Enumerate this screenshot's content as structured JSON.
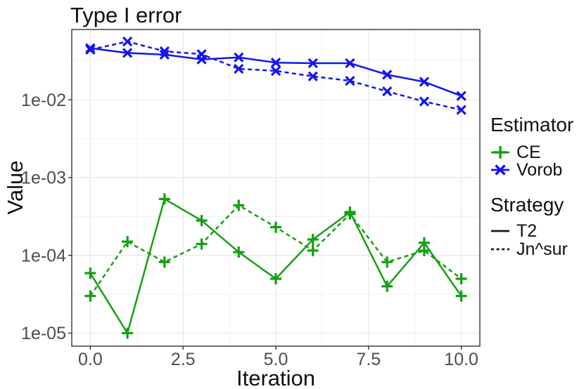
{
  "page": {
    "background": "#FFFFFF"
  },
  "chart_data": {
    "type": "line",
    "title": "Type I error",
    "xlabel": "Iteration",
    "ylabel": "Value",
    "x_scale": "linear",
    "y_scale": "log10",
    "xlim": [
      -0.5,
      10.5
    ],
    "ylim": [
      6.8e-06,
      0.08
    ],
    "grid": "major+minor",
    "legend_position": "right",
    "x_ticks": {
      "values": [
        0,
        2.5,
        5,
        7.5,
        10
      ],
      "labels": [
        "0.0",
        "2.5",
        "5.0",
        "7.5",
        "10.0"
      ],
      "minor": [
        1.25,
        3.75,
        6.25,
        8.75
      ]
    },
    "y_ticks": {
      "values": [
        0.01,
        0.001,
        0.0001,
        1e-05
      ],
      "labels": [
        "1e-02",
        "1e-03",
        "1e-04",
        "1e-05"
      ],
      "minor_log10": [
        -1.5,
        -2.5,
        -3.5,
        -4.5
      ]
    },
    "x": [
      0,
      1,
      2,
      3,
      4,
      5,
      6,
      7,
      8,
      9,
      10
    ],
    "series": [
      {
        "estimator": "CE",
        "strategy": "T2",
        "color": "#14A014",
        "marker": "plus",
        "line": "solid",
        "values": [
          5.9e-05,
          1e-05,
          0.00053,
          0.00028,
          0.00011,
          5e-05,
          0.00016,
          0.00036,
          4e-05,
          0.000145,
          3e-05
        ]
      },
      {
        "estimator": "CE",
        "strategy": "Jn^sur",
        "color": "#14A014",
        "marker": "plus",
        "line": "dashed",
        "values": [
          3e-05,
          0.00015,
          8.2e-05,
          0.00014,
          0.00044,
          0.00023,
          0.000115,
          0.00034,
          8.2e-05,
          0.000115,
          5e-05
        ]
      },
      {
        "estimator": "Vorob",
        "strategy": "T2",
        "color": "#1414F0",
        "marker": "x",
        "line": "solid",
        "values": [
          0.046,
          0.04,
          0.038,
          0.033,
          0.035,
          0.03,
          0.0295,
          0.0295,
          0.021,
          0.017,
          0.0112
        ]
      },
      {
        "estimator": "Vorob",
        "strategy": "Jn^sur",
        "color": "#1414F0",
        "marker": "x",
        "line": "dashed",
        "values": [
          0.044,
          0.056,
          0.042,
          0.0385,
          0.025,
          0.0235,
          0.02,
          0.0175,
          0.0128,
          0.0095,
          0.0074
        ]
      }
    ]
  },
  "legend": {
    "estimator_title": "Estimator",
    "estimator_items": [
      {
        "label": "CE",
        "color": "#14A014",
        "marker": "plus"
      },
      {
        "label": "Vorob",
        "color": "#1414F0",
        "marker": "x"
      }
    ],
    "strategy_title": "Strategy",
    "strategy_items": [
      {
        "label": "T2",
        "line": "solid"
      },
      {
        "label": "Jn^sur",
        "line": "dashed"
      }
    ]
  },
  "colors": {
    "ce_green": "#14A014",
    "vorob_blue": "#1414F0",
    "tick_label": "#4D4D4D",
    "panel_border": "#333333",
    "grid_major": "#E7E7E7",
    "grid_minor": "#F2F2F2",
    "text": "#1A1A1A"
  }
}
